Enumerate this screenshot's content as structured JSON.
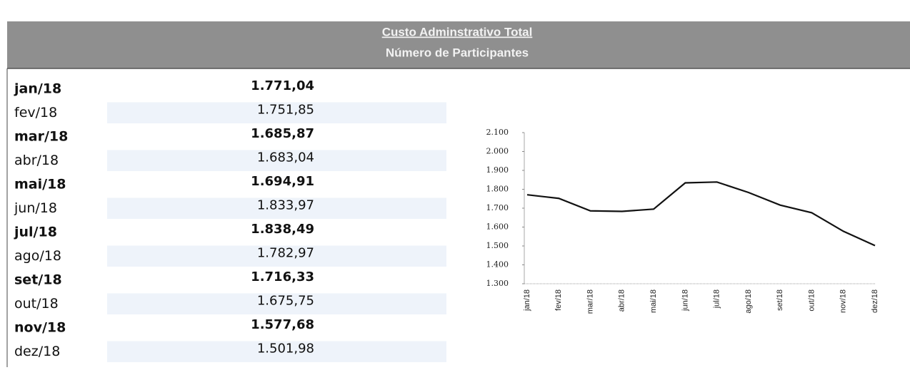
{
  "header": {
    "title": "Custo Adminstrativo Total",
    "subtitle": "Número de Participantes"
  },
  "table": {
    "rows": [
      [
        "jan/18",
        "1.771,04"
      ],
      [
        "fev/18",
        "1.751,85"
      ],
      [
        "mar/18",
        "1.685,87"
      ],
      [
        "abr/18",
        "1.683,04"
      ],
      [
        "mai/18",
        "1.694,91"
      ],
      [
        "jun/18",
        "1.833,97"
      ],
      [
        "jul/18",
        "1.838,49"
      ],
      [
        "ago/18",
        "1.782,97"
      ],
      [
        "set/18",
        "1.716,33"
      ],
      [
        "out/18",
        "1.675,75"
      ],
      [
        "nov/18",
        "1.577,68"
      ],
      [
        "dez/18",
        "1.501,98"
      ]
    ]
  },
  "chart_data": {
    "type": "line",
    "categories": [
      "jan/18",
      "fev/18",
      "mar/18",
      "abr/18",
      "mai/18",
      "jun/18",
      "jul/18",
      "ago/18",
      "set/18",
      "out/18",
      "nov/18",
      "dez/18"
    ],
    "values": [
      1771.04,
      1751.85,
      1685.87,
      1683.04,
      1694.91,
      1833.97,
      1838.49,
      1782.97,
      1716.33,
      1675.75,
      1577.68,
      1501.98
    ],
    "color": "#111111",
    "ylim": [
      1300,
      2100
    ],
    "yticks": [
      {
        "value": 1300,
        "label": "1.300"
      },
      {
        "value": 1400,
        "label": "1.400"
      },
      {
        "value": 1500,
        "label": "1.500"
      },
      {
        "value": 1600,
        "label": "1.600"
      },
      {
        "value": 1700,
        "label": "1.700"
      },
      {
        "value": 1800,
        "label": "1.800"
      },
      {
        "value": 1900,
        "label": "1.900"
      },
      {
        "value": 2000,
        "label": "2.000"
      },
      {
        "value": 2100,
        "label": "2.100"
      }
    ]
  }
}
